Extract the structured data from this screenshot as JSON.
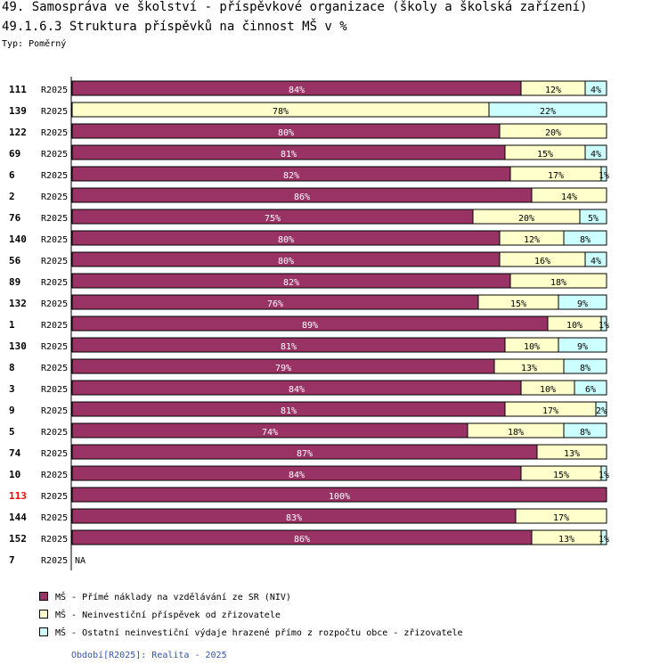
{
  "header": {
    "title_line1": "49. Samospráva ve školství - příspěvkové organizace (školy a školská zařízení)",
    "title_line2": "49.1.6.3 Struktura příspěvků na činnost MŠ v %",
    "subtitle": "Typ: Poměrný"
  },
  "colors": {
    "series1": "#993366",
    "series2": "#ffffcc",
    "series3": "#ccffff",
    "highlight_label": "#ff0000"
  },
  "chart_data": {
    "type": "bar",
    "orientation": "horizontal",
    "stacked": true,
    "unit": "%",
    "xlim": [
      0,
      100
    ],
    "categories": [
      "111",
      "139",
      "122",
      "69",
      "6",
      "2",
      "76",
      "140",
      "56",
      "89",
      "132",
      "1",
      "130",
      "8",
      "3",
      "9",
      "5",
      "74",
      "10",
      "113",
      "144",
      "152",
      "7"
    ],
    "period_labels": [
      "R2025",
      "R2025",
      "R2025",
      "R2025",
      "R2025",
      "R2025",
      "R2025",
      "R2025",
      "R2025",
      "R2025",
      "R2025",
      "R2025",
      "R2025",
      "R2025",
      "R2025",
      "R2025",
      "R2025",
      "R2025",
      "R2025",
      "R2025",
      "R2025",
      "R2025",
      "R2025"
    ],
    "highlighted_category": "113",
    "na_label": "NA",
    "series": [
      {
        "name": "MŠ - Přímé náklady na vzdělávání ze SR (NIV)",
        "values": [
          84,
          0,
          80,
          81,
          82,
          86,
          75,
          80,
          80,
          82,
          76,
          89,
          81,
          79,
          84,
          81,
          74,
          87,
          84,
          100,
          83,
          86,
          null
        ]
      },
      {
        "name": "MŠ - Neinvestiční příspěvek od zřizovatele",
        "values": [
          12,
          78,
          20,
          15,
          17,
          14,
          20,
          12,
          16,
          18,
          15,
          10,
          10,
          13,
          10,
          17,
          18,
          13,
          15,
          0,
          17,
          13,
          null
        ]
      },
      {
        "name": "MŠ - Ostatní neinvestiční výdaje hrazené přímo z rozpočtu obce - zřizovatele",
        "values": [
          4,
          22,
          0,
          4,
          1,
          0,
          5,
          8,
          4,
          0,
          9,
          1,
          9,
          8,
          6,
          2,
          8,
          0,
          1,
          0,
          0,
          1,
          null
        ]
      }
    ]
  },
  "legend": {
    "items": [
      "MŠ - Přímé náklady na vzdělávání ze SR (NIV)",
      "MŠ - Neinvestiční příspěvek od zřizovatele",
      "MŠ - Ostatní neinvestiční výdaje hrazené přímo z rozpočtu obce - zřizovatele"
    ]
  },
  "footer": {
    "period": "Období[R2025]: Realita - 2025"
  }
}
